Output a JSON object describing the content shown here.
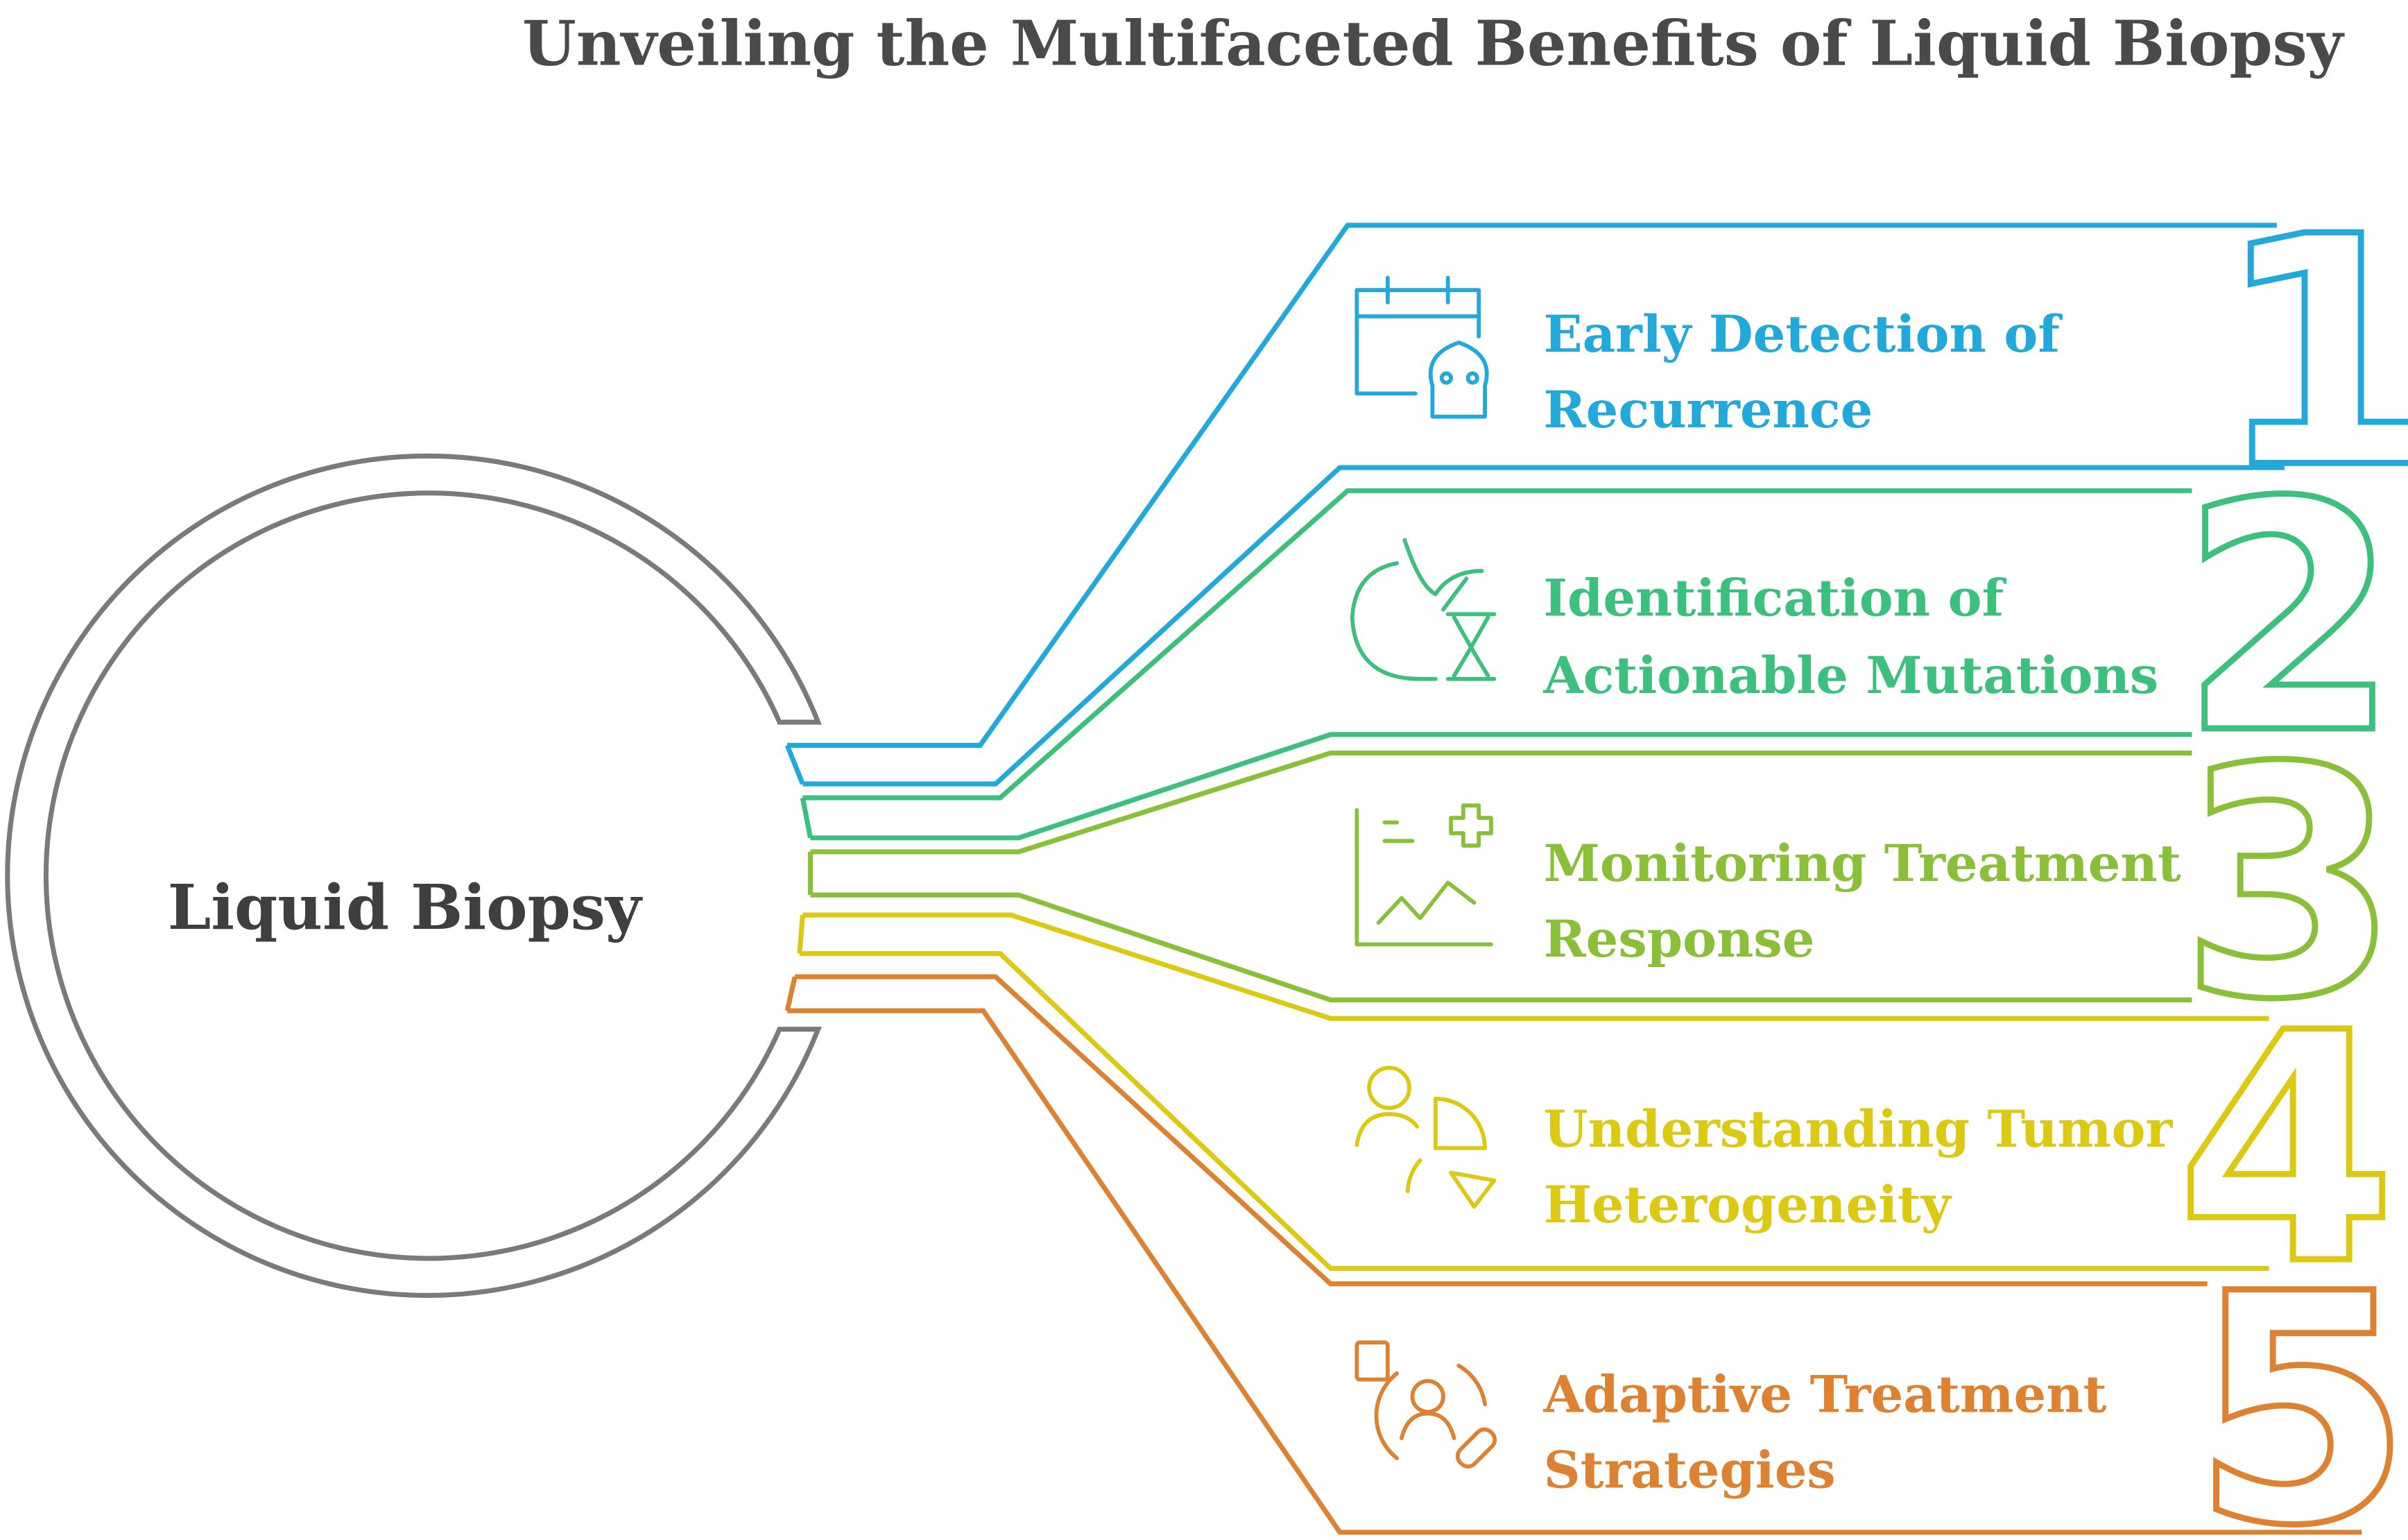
{
  "title": "Unveiling the Multifaceted Benefits of Liquid Biopsy",
  "center": {
    "label": "Liquid Biopsy",
    "color": "#7a7a7a"
  },
  "items": [
    {
      "number": "1",
      "line1": "Early Detection of",
      "line2": "Recurrence",
      "color": "#23a9d9",
      "icon": "calendar-skull-icon"
    },
    {
      "number": "2",
      "line1": "Identification of",
      "line2": "Actionable Mutations",
      "color": "#3dbf7d",
      "icon": "apple-dna-icon"
    },
    {
      "number": "3",
      "line1": "Monitoring Treatment",
      "line2": "Response",
      "color": "#8abf3a",
      "icon": "chart-health-icon"
    },
    {
      "number": "4",
      "line1": "Understanding Tumor",
      "line2": "Heterogeneity",
      "color": "#dcc914",
      "icon": "person-pie-icon"
    },
    {
      "number": "5",
      "line1": "Adaptive Treatment",
      "line2": "Strategies",
      "color": "#dc8232",
      "icon": "patient-pill-icon"
    }
  ]
}
